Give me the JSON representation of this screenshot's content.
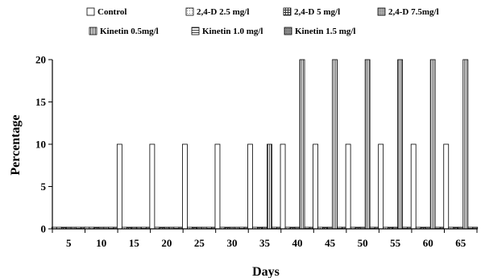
{
  "chart_data": {
    "type": "bar",
    "title": "",
    "xlabel": "Days",
    "ylabel": "Percentage",
    "ylim": [
      0,
      20
    ],
    "y_ticks": [
      "0",
      "5",
      "10",
      "15",
      "20"
    ],
    "categories": [
      "5",
      "10",
      "15",
      "20",
      "25",
      "30",
      "35",
      "40",
      "45",
      "50",
      "55",
      "60",
      "65"
    ],
    "legend_position": "top",
    "series": [
      {
        "name": "Control",
        "pattern": "plain",
        "values": [
          0,
          0,
          10,
          10,
          10,
          10,
          10,
          10,
          10,
          10,
          10,
          10,
          10
        ]
      },
      {
        "name": "2,4-D 2.5 mg/l",
        "pattern": "light-dots",
        "values": [
          0,
          0,
          0,
          0,
          0,
          0,
          0,
          0,
          0,
          0,
          0,
          0,
          0
        ]
      },
      {
        "name": "2,4-D 5 mg/l",
        "pattern": "grid",
        "values": [
          0,
          0,
          0,
          0,
          0,
          0,
          0,
          0,
          0,
          0,
          0,
          0,
          0
        ]
      },
      {
        "name": "2,4-D 7.5mg/l",
        "pattern": "dense-dots",
        "values": [
          0,
          0,
          0,
          0,
          0,
          0,
          0,
          0,
          0,
          0,
          0,
          0,
          0
        ]
      },
      {
        "name": "Kinetin 0.5mg/l",
        "pattern": "vertical-lines",
        "values": [
          0,
          0,
          0,
          0,
          0,
          0,
          10,
          20,
          20,
          20,
          20,
          20,
          20
        ]
      },
      {
        "name": "Kinetin 1.0 mg/l",
        "pattern": "horizontal-lines",
        "values": [
          0,
          0,
          0,
          0,
          0,
          0,
          0,
          0,
          0,
          0,
          0,
          0,
          0
        ]
      },
      {
        "name": "Kinetin 1.5 mg/l",
        "pattern": "stipple",
        "values": [
          0,
          0,
          0,
          0,
          0,
          0,
          0,
          0,
          0,
          0,
          0,
          0,
          0
        ]
      }
    ]
  }
}
